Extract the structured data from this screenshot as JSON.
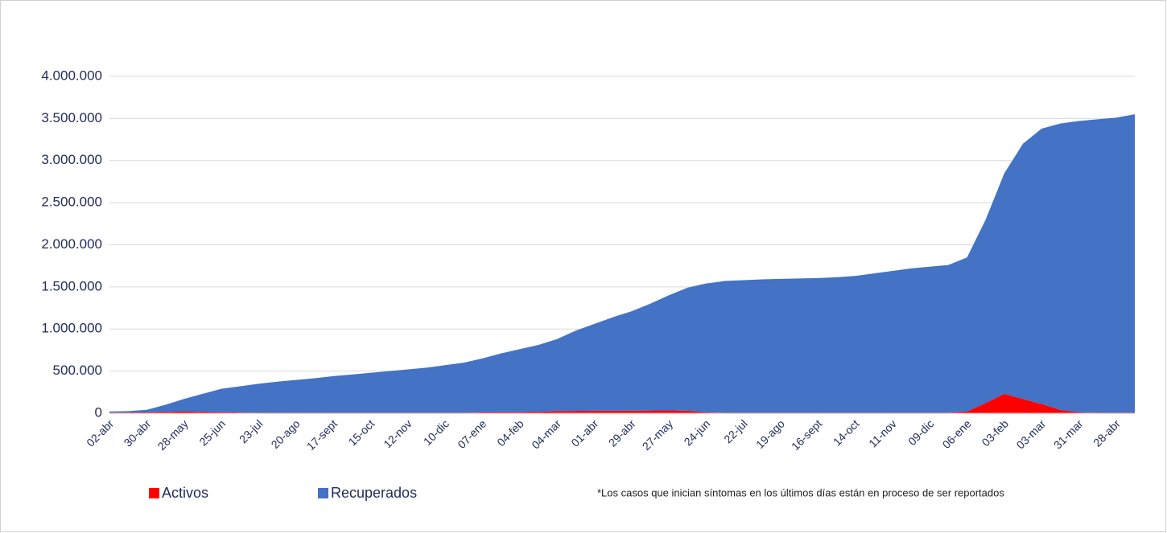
{
  "chart_data": {
    "type": "stacked-area",
    "categories": [
      "02-abr",
      null,
      "30-abr",
      null,
      "28-may",
      null,
      "25-jun",
      null,
      "23-jul",
      null,
      "20-ago",
      null,
      "17-sept",
      null,
      "15-oct",
      null,
      "12-nov",
      null,
      "10-dic",
      null,
      "07-ene",
      null,
      "04-feb",
      null,
      "04-mar",
      null,
      "01-abr",
      null,
      "29-abr",
      null,
      "27-may",
      null,
      "24-jun",
      null,
      "22-jul",
      null,
      "19-ago",
      null,
      "16-sept",
      null,
      "14-oct",
      null,
      "11-nov",
      null,
      "09-dic",
      null,
      "06-ene",
      null,
      "03-feb",
      null,
      "03-mar",
      null,
      "31-mar",
      null,
      "28-abr",
      null
    ],
    "series": [
      {
        "name": "Activos",
        "color": "#ff0000",
        "values": [
          5000,
          8000,
          10000,
          15000,
          20000,
          15000,
          12000,
          8000,
          5000,
          5000,
          5000,
          5000,
          5000,
          5000,
          5000,
          5000,
          5000,
          5000,
          5000,
          5000,
          10000,
          12000,
          12000,
          15000,
          25000,
          28000,
          30000,
          30000,
          30000,
          32000,
          35000,
          30000,
          10000,
          5000,
          5000,
          5000,
          5000,
          5000,
          5000,
          5000,
          5000,
          5000,
          5000,
          5000,
          5000,
          5000,
          20000,
          120000,
          230000,
          170000,
          110000,
          40000,
          10000,
          5000,
          5000,
          5000
        ]
      },
      {
        "name": "Recuperados",
        "color": "#4472c4",
        "values": [
          15000,
          17000,
          30000,
          85000,
          150000,
          215000,
          278000,
          312000,
          345000,
          370000,
          390000,
          410000,
          435000,
          455000,
          475000,
          495000,
          515000,
          535000,
          565000,
          595000,
          640000,
          698000,
          748000,
          795000,
          855000,
          952000,
          1030000,
          1110000,
          1180000,
          1268000,
          1365000,
          1460000,
          1530000,
          1565000,
          1575000,
          1585000,
          1590000,
          1595000,
          1600000,
          1610000,
          1625000,
          1655000,
          1685000,
          1715000,
          1735000,
          1755000,
          1830000,
          2180000,
          2620000,
          3030000,
          3270000,
          3400000,
          3460000,
          3485000,
          3505000,
          3545000
        ]
      }
    ],
    "ylim": [
      0,
      4000000
    ],
    "yticks": [
      0,
      {
        "value": 500000,
        "label": "500.000"
      },
      {
        "value": 1000000,
        "label": "1.000.000"
      },
      {
        "value": 1500000,
        "label": "1.500.000"
      },
      {
        "value": 2000000,
        "label": "2.000.000"
      },
      {
        "value": 2500000,
        "label": "2.500.000"
      },
      {
        "value": 3000000,
        "label": "3.000.000"
      },
      {
        "value": 3500000,
        "label": "3.500.000"
      },
      {
        "value": 4000000,
        "label": "4.000.000"
      }
    ],
    "grid": true,
    "legend": "bottom",
    "note": "*Los casos que inician síntomas en los últimos días están en proceso de ser reportados"
  }
}
